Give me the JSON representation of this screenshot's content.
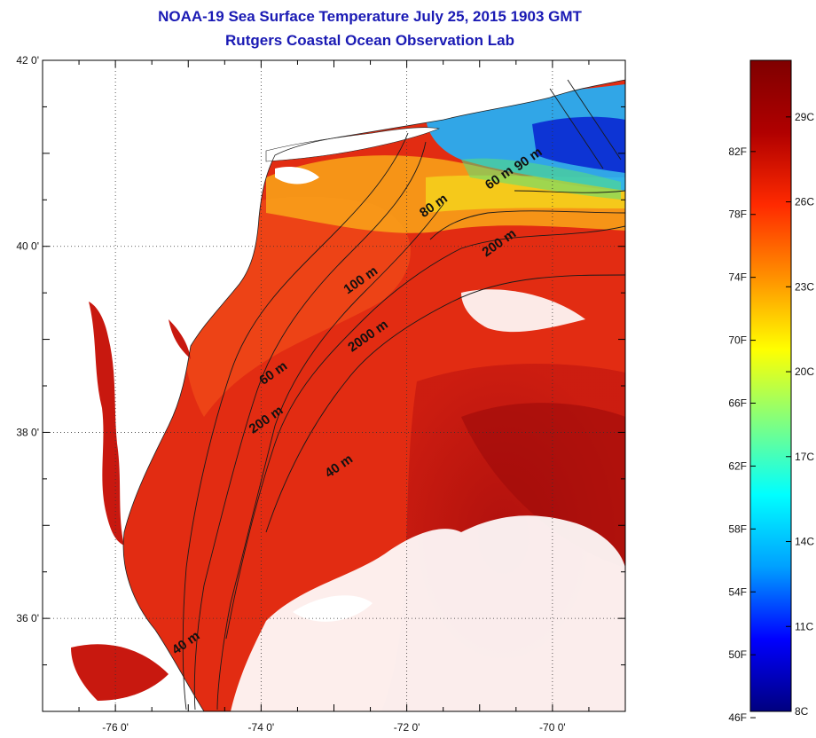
{
  "title": "NOAA-19 Sea Surface Temperature July 25, 2015 1903 GMT",
  "subtitle": "Rutgers Coastal Ocean Observation Lab",
  "map": {
    "lat_labels": [
      "42 0'",
      "40 0'",
      "38 0'",
      "36 0'"
    ],
    "lat_values": [
      42,
      40,
      38,
      36
    ],
    "lon_labels": [
      "-76 0'",
      "-74 0'",
      "-72 0'",
      "-70 0'"
    ],
    "lon_values": [
      -76,
      -74,
      -72,
      -70
    ],
    "lon_range": [
      -77,
      -69
    ],
    "lat_range": [
      35,
      42
    ],
    "gridlines": "dotted",
    "contour_labels": [
      {
        "text": "40 m",
        "lon": -72.9,
        "lat": 37.6
      },
      {
        "text": "40 m",
        "lon": -75.0,
        "lat": 35.7
      },
      {
        "text": "60 m",
        "lon": -73.8,
        "lat": 38.6
      },
      {
        "text": "60 m",
        "lon": -70.7,
        "lat": 40.7
      },
      {
        "text": "80 m",
        "lon": -71.6,
        "lat": 40.4
      },
      {
        "text": "90 m",
        "lon": -70.3,
        "lat": 40.9
      },
      {
        "text": "100 m",
        "lon": -72.6,
        "lat": 39.6
      },
      {
        "text": "200 m",
        "lon": -73.9,
        "lat": 38.1
      },
      {
        "text": "200 m",
        "lon": -70.7,
        "lat": 40.0
      },
      {
        "text": "2000 m",
        "lon": -72.5,
        "lat": 39.0
      }
    ]
  },
  "colorbar": {
    "fahrenheit_labels": [
      "82F",
      "78F",
      "74F",
      "70F",
      "66F",
      "62F",
      "58F",
      "54F",
      "50F",
      "46F"
    ],
    "fahrenheit_values": [
      82,
      78,
      74,
      70,
      66,
      62,
      58,
      54,
      50,
      46
    ],
    "celsius_labels": [
      "29C",
      "26C",
      "23C",
      "20C",
      "17C",
      "14C",
      "11C",
      "8C"
    ],
    "celsius_values": [
      29,
      26,
      23,
      20,
      17,
      14,
      11,
      8
    ],
    "range_celsius": [
      8,
      31
    ],
    "colors": [
      "#00007f",
      "#0000ff",
      "#00a0ff",
      "#00ffff",
      "#80ff80",
      "#ffff00",
      "#ff9000",
      "#ff2a00",
      "#b00000",
      "#7f0000"
    ]
  },
  "colors": {
    "title": "#1a1ab4",
    "land": "#ffffff",
    "warm_water": "#e82a12",
    "deep_water": "#b80f0f",
    "cool_water": "#1eb4ff",
    "cold_water": "#0a28d2"
  }
}
